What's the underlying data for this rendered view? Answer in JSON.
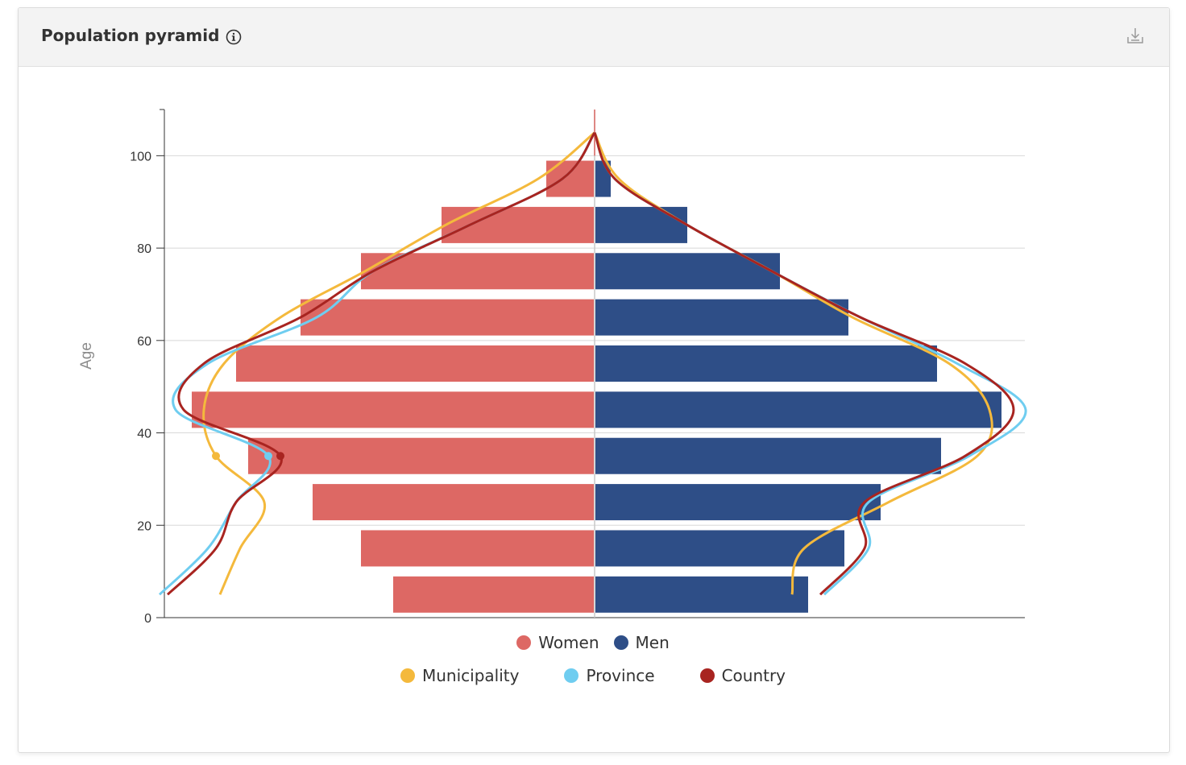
{
  "header": {
    "title": "Population pyramid"
  },
  "icons": {
    "info": "info-circle-icon",
    "download": "download-icon"
  },
  "colors": {
    "women": "#dd6864",
    "men": "#2e4e87",
    "municipality": "#f4b93c",
    "province": "#6fcdf0",
    "country": "#a82420"
  },
  "legend": {
    "bars": [
      "Women",
      "Men"
    ],
    "lines": [
      "Municipality",
      "Province",
      "Country"
    ]
  },
  "chart_data": {
    "type": "bar",
    "orientation": "horizontal",
    "ylabel": "Age",
    "ylim": [
      0,
      110
    ],
    "yticks": [
      0,
      20,
      40,
      60,
      80,
      100
    ],
    "grid": true,
    "legend_position": "bottom",
    "age_groups": [
      5,
      15,
      25,
      35,
      45,
      55,
      65,
      75,
      85,
      95
    ],
    "x_share_range": [
      -100,
      100
    ],
    "series": [
      {
        "name": "Women",
        "type": "bar",
        "side": "left",
        "values": [
          50,
          58,
          70,
          86,
          100,
          89,
          73,
          58,
          38,
          12
        ]
      },
      {
        "name": "Men",
        "type": "bar",
        "side": "right",
        "values": [
          53,
          62,
          71,
          86,
          101,
          85,
          63,
          46,
          23,
          4
        ]
      },
      {
        "name": "Municipality",
        "type": "line",
        "y": [
          5,
          15,
          25,
          35,
          45,
          55,
          65,
          75,
          85,
          95,
          105
        ],
        "left": [
          93,
          88,
          82,
          94,
          97,
          92,
          78,
          57,
          37,
          14,
          0
        ],
        "right": [
          49,
          52,
          73,
          95,
          98,
          88,
          64,
          44,
          23,
          6,
          0
        ]
      },
      {
        "name": "Province",
        "type": "line",
        "y": [
          5,
          15,
          25,
          35,
          45,
          55,
          65,
          75,
          85,
          95,
          105
        ],
        "left": [
          108,
          96,
          89,
          81,
          104,
          96,
          69,
          55,
          31,
          8,
          0
        ],
        "right": [
          57,
          68,
          68,
          93,
          107,
          90,
          66,
          44,
          23,
          5,
          0
        ]
      },
      {
        "name": "Country",
        "type": "line",
        "y": [
          5,
          15,
          25,
          35,
          45,
          55,
          65,
          75,
          85,
          95,
          105
        ],
        "left": [
          106,
          94,
          89,
          78,
          102,
          97,
          73,
          55,
          31,
          8,
          0
        ],
        "right": [
          56,
          67,
          67,
          92,
          104,
          92,
          66,
          44,
          23,
          5,
          0
        ]
      }
    ]
  }
}
